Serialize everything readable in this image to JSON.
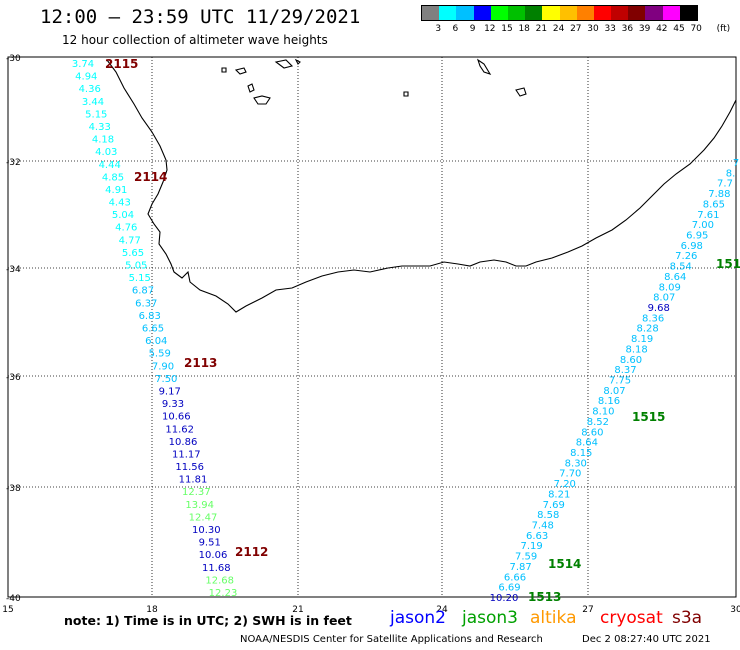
{
  "header": {
    "title": "12:00 — 23:59 UTC 11/29/2021",
    "subtitle": "12 hour collection of altimeter wave heights"
  },
  "colorbar": {
    "unit": "(ft)",
    "labels": [
      "3",
      "6",
      "9",
      "12",
      "15",
      "18",
      "21",
      "24",
      "27",
      "30",
      "33",
      "36",
      "39",
      "42",
      "45",
      "70"
    ],
    "colors": [
      "#808080",
      "#00ffff",
      "#00c0ff",
      "#0000ff",
      "#00ff00",
      "#00c000",
      "#008000",
      "#ffff00",
      "#ffc000",
      "#ff8000",
      "#ff0000",
      "#c00000",
      "#800000",
      "#800080",
      "#ff00ff",
      "#000000"
    ]
  },
  "map": {
    "lat_labels": [
      "-30",
      "-32",
      "-34",
      "-36",
      "-38",
      "-40"
    ],
    "lon_labels": [
      "15",
      "18",
      "21",
      "24",
      "27",
      "30"
    ]
  },
  "tracks": [
    {
      "name": "west-track",
      "passes": [
        {
          "label": "2115",
          "color": "#800000"
        },
        {
          "label": "2114",
          "color": "#800000"
        },
        {
          "label": "2113",
          "color": "#800000"
        },
        {
          "label": "2112",
          "color": "#800000"
        }
      ],
      "values": [
        "3.74",
        "4.94",
        "4.36",
        "3.44",
        "5.15",
        "4.33",
        "4.18",
        "4.03",
        "4.44",
        "4.85",
        "4.91",
        "4.43",
        "5.04",
        "4.76",
        "4.77",
        "5.65",
        "5.05",
        "5.15",
        "6.87",
        "6.37",
        "6.83",
        "6.65",
        "6.04",
        "5.59",
        "7.90",
        "7.50",
        "9.17",
        "9.33",
        "10.66",
        "11.62",
        "10.86",
        "11.17",
        "11.56",
        "11.81",
        "12.37",
        "13.94",
        "12.47",
        "10.30",
        "9.51",
        "10.06",
        "11.68",
        "12.68",
        "12.23"
      ],
      "colors": [
        "#00ffff",
        "#00ffff",
        "#00ffff",
        "#00ffff",
        "#00ffff",
        "#00ffff",
        "#00ffff",
        "#00ffff",
        "#00ffff",
        "#00ffff",
        "#00ffff",
        "#00ffff",
        "#00ffff",
        "#00ffff",
        "#00ffff",
        "#00ffff",
        "#00ffff",
        "#00ffff",
        "#00c0ff",
        "#00c0ff",
        "#00c0ff",
        "#00c0ff",
        "#00c0ff",
        "#00c0ff",
        "#00c0ff",
        "#00c0ff",
        "#0000c0",
        "#0000c0",
        "#0000c0",
        "#0000c0",
        "#0000c0",
        "#0000c0",
        "#0000c0",
        "#0000c0",
        "#66ff66",
        "#66ff66",
        "#66ff66",
        "#0000c0",
        "#0000c0",
        "#0000c0",
        "#0000c0",
        "#66ff66",
        "#66ff66"
      ]
    },
    {
      "name": "east-track",
      "passes": [
        {
          "label": "151",
          "color": "#008000"
        },
        {
          "label": "1515",
          "color": "#008000"
        },
        {
          "label": "1514",
          "color": "#008000"
        },
        {
          "label": "1513",
          "color": "#008000"
        }
      ],
      "values": [
        "7",
        "8.",
        "7.7",
        "7.88",
        "8.65",
        "7.61",
        "7.00",
        "6.95",
        "6.98",
        "7.26",
        "8.54",
        "8.64",
        "8.09",
        "8.07",
        "9.68",
        "8.36",
        "8.28",
        "8.19",
        "8.18",
        "8.60",
        "8.37",
        "7.75",
        "8.07",
        "8.16",
        "8.10",
        "8.52",
        "8.60",
        "8.64",
        "8.15",
        "8.30",
        "7.70",
        "7.20",
        "8.21",
        "7.69",
        "8.58",
        "7.48",
        "6.63",
        "7.19",
        "7.59",
        "7.87",
        "6.66",
        "6.69",
        "10.20"
      ],
      "colors": [
        "#00c0ff",
        "#00c0ff",
        "#00c0ff",
        "#00c0ff",
        "#00c0ff",
        "#00c0ff",
        "#00c0ff",
        "#00c0ff",
        "#00c0ff",
        "#00c0ff",
        "#00c0ff",
        "#00c0ff",
        "#00c0ff",
        "#00c0ff",
        "#0000c0",
        "#00c0ff",
        "#00c0ff",
        "#00c0ff",
        "#00c0ff",
        "#00c0ff",
        "#00c0ff",
        "#00c0ff",
        "#00c0ff",
        "#00c0ff",
        "#00c0ff",
        "#00c0ff",
        "#00c0ff",
        "#00c0ff",
        "#00c0ff",
        "#00c0ff",
        "#00c0ff",
        "#00c0ff",
        "#00c0ff",
        "#00c0ff",
        "#00c0ff",
        "#00c0ff",
        "#00c0ff",
        "#00c0ff",
        "#00c0ff",
        "#00c0ff",
        "#00c0ff",
        "#00c0ff",
        "#0000c0"
      ]
    }
  ],
  "footer": {
    "note": "note:  1) Time is in UTC;  2) SWH is in feet",
    "satellites": [
      {
        "name": "jason2",
        "color": "#0000ff"
      },
      {
        "name": "jason3",
        "color": "#00a000"
      },
      {
        "name": "altika",
        "color": "#ff9900"
      },
      {
        "name": "cryosat",
        "color": "#ff0000"
      },
      {
        "name": "s3a",
        "color": "#800000"
      }
    ],
    "credit": "NOAA/NESDIS Center for Satellite Applications and Research",
    "generated": "Dec  2 08:27:40 UTC 2021"
  }
}
